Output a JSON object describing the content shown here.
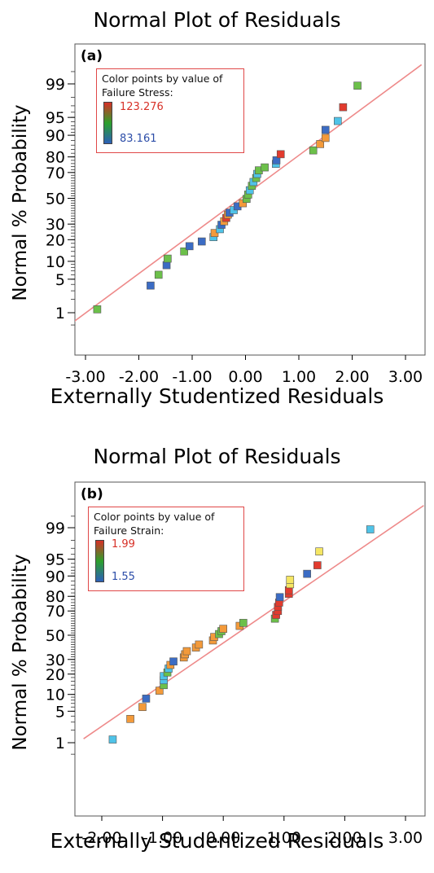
{
  "chart_data": [
    {
      "type": "scatter",
      "panel_label": "(a)",
      "title": "Normal Plot of Residuals",
      "xlabel": "Externally Studentized Residuals",
      "ylabel": "Normal % Probability",
      "x_ticks": [
        "-3.00",
        "-2.00",
        "-1.00",
        "0.00",
        "1.00",
        "2.00",
        "3.00"
      ],
      "y_ticks": [
        "1",
        "5",
        "10",
        "20",
        "30",
        "50",
        "70",
        "80",
        "90",
        "95",
        "99"
      ],
      "y_scale": "normal probability",
      "xlim": [
        -3.6,
        3.3
      ],
      "fit_line": {
        "x": [
          -3.6,
          3.3
        ],
        "y": [
          0.245,
          99.67
        ]
      },
      "legend": {
        "title_line1": "Color points by value of",
        "title_line2": "Failure Stress:",
        "max": "123.276",
        "min": "83.161",
        "placement": "top-left"
      },
      "points": [
        {
          "x": -2.78,
          "y": 1.2,
          "color": "#6cc04a"
        },
        {
          "x": -1.78,
          "y": 3.8,
          "color": "#3b6cc4"
        },
        {
          "x": -1.63,
          "y": 6.0,
          "color": "#6cc04a"
        },
        {
          "x": -1.48,
          "y": 8.7,
          "color": "#3b6cc4"
        },
        {
          "x": -1.46,
          "y": 11.0,
          "color": "#6cc04a"
        },
        {
          "x": -1.15,
          "y": 14.0,
          "color": "#6cc04a"
        },
        {
          "x": -1.05,
          "y": 16.5,
          "color": "#3b6cc4"
        },
        {
          "x": -0.82,
          "y": 19.0,
          "color": "#3b6cc4"
        },
        {
          "x": -0.6,
          "y": 21.5,
          "color": "#4fc3e8"
        },
        {
          "x": -0.58,
          "y": 24.0,
          "color": "#f39a3a"
        },
        {
          "x": -0.48,
          "y": 26.5,
          "color": "#4fc3e8"
        },
        {
          "x": -0.45,
          "y": 29.5,
          "color": "#3b6cc4"
        },
        {
          "x": -0.4,
          "y": 32.0,
          "color": "#f39a3a"
        },
        {
          "x": -0.36,
          "y": 34.5,
          "color": "#e23b2e"
        },
        {
          "x": -0.33,
          "y": 37.0,
          "color": "#f39a3a"
        },
        {
          "x": -0.3,
          "y": 38.5,
          "color": "#3b6cc4"
        },
        {
          "x": -0.22,
          "y": 40.5,
          "color": "#4fc3e8"
        },
        {
          "x": -0.15,
          "y": 43.5,
          "color": "#3b6cc4"
        },
        {
          "x": -0.05,
          "y": 46.0,
          "color": "#f39a3a"
        },
        {
          "x": 0.02,
          "y": 49.5,
          "color": "#6cc04a"
        },
        {
          "x": 0.05,
          "y": 53.0,
          "color": "#6cc04a"
        },
        {
          "x": 0.08,
          "y": 56.5,
          "color": "#4fc3e8"
        },
        {
          "x": 0.12,
          "y": 60.0,
          "color": "#6cc04a"
        },
        {
          "x": 0.15,
          "y": 63.0,
          "color": "#4fc3e8"
        },
        {
          "x": 0.2,
          "y": 66.0,
          "color": "#6cc04a"
        },
        {
          "x": 0.22,
          "y": 69.0,
          "color": "#4fc3e8"
        },
        {
          "x": 0.25,
          "y": 71.5,
          "color": "#6cc04a"
        },
        {
          "x": 0.36,
          "y": 73.5,
          "color": "#6cc04a"
        },
        {
          "x": 0.57,
          "y": 75.8,
          "color": "#4fc3e8"
        },
        {
          "x": 0.58,
          "y": 78.0,
          "color": "#3b6cc4"
        },
        {
          "x": 0.66,
          "y": 81.5,
          "color": "#e23b2e"
        },
        {
          "x": 1.27,
          "y": 83.5,
          "color": "#6cc04a"
        },
        {
          "x": 1.4,
          "y": 86.5,
          "color": "#f39a3a"
        },
        {
          "x": 1.5,
          "y": 89.0,
          "color": "#f39a3a"
        },
        {
          "x": 1.5,
          "y": 91.8,
          "color": "#3b6cc4"
        },
        {
          "x": 1.73,
          "y": 94.2,
          "color": "#4fc3e8"
        },
        {
          "x": 1.83,
          "y": 96.8,
          "color": "#e23b2e"
        },
        {
          "x": 2.1,
          "y": 98.9,
          "color": "#6cc04a"
        }
      ]
    },
    {
      "type": "scatter",
      "panel_label": "(b)",
      "title": "Normal Plot of Residuals",
      "xlabel": "Externally Studentized Residuals",
      "ylabel": "Normal % Probability",
      "x_ticks": [
        "-2.00",
        "-1.00",
        "0.00",
        "1.00",
        "2.00",
        "3.00"
      ],
      "y_ticks": [
        "1",
        "5",
        "10",
        "20",
        "30",
        "50",
        "70",
        "80",
        "90",
        "95",
        "99"
      ],
      "y_scale": "normal probability",
      "xlim": [
        -2.3,
        3.3
      ],
      "fit_line": {
        "x": [
          -2.3,
          3.3
        ],
        "y": [
          1.25,
          99.75
        ]
      },
      "legend": {
        "title_line1": "Color points by value of",
        "title_line2": "Failure Strain:",
        "max": "1.99",
        "min": "1.55",
        "placement": "top-left"
      },
      "points": [
        {
          "x": -1.82,
          "y": 1.2,
          "color": "#4fc3e8"
        },
        {
          "x": -1.53,
          "y": 3.5,
          "color": "#f39a3a"
        },
        {
          "x": -1.33,
          "y": 6.0,
          "color": "#f39a3a"
        },
        {
          "x": -1.27,
          "y": 8.5,
          "color": "#3b6cc4"
        },
        {
          "x": -1.05,
          "y": 11.5,
          "color": "#f39a3a"
        },
        {
          "x": -0.98,
          "y": 14.0,
          "color": "#6cc04a"
        },
        {
          "x": -0.98,
          "y": 16.5,
          "color": "#4fc3e8"
        },
        {
          "x": -0.98,
          "y": 18.8,
          "color": "#4fc3e8"
        },
        {
          "x": -0.92,
          "y": 21.0,
          "color": "#6cc04a"
        },
        {
          "x": -0.9,
          "y": 23.5,
          "color": "#4fc3e8"
        },
        {
          "x": -0.87,
          "y": 26.0,
          "color": "#f39a3a"
        },
        {
          "x": -0.82,
          "y": 28.5,
          "color": "#3b6cc4"
        },
        {
          "x": -0.65,
          "y": 31.5,
          "color": "#f39a3a"
        },
        {
          "x": -0.63,
          "y": 34.0,
          "color": "#f39a3a"
        },
        {
          "x": -0.6,
          "y": 36.5,
          "color": "#f39a3a"
        },
        {
          "x": -0.45,
          "y": 39.5,
          "color": "#f39a3a"
        },
        {
          "x": -0.4,
          "y": 42.0,
          "color": "#f39a3a"
        },
        {
          "x": -0.17,
          "y": 45.5,
          "color": "#f39a3a"
        },
        {
          "x": -0.15,
          "y": 48.5,
          "color": "#f39a3a"
        },
        {
          "x": -0.07,
          "y": 51.0,
          "color": "#6cc04a"
        },
        {
          "x": -0.03,
          "y": 53.5,
          "color": "#6cc04a"
        },
        {
          "x": 0.0,
          "y": 55.5,
          "color": "#f39a3a"
        },
        {
          "x": 0.27,
          "y": 58.0,
          "color": "#f39a3a"
        },
        {
          "x": 0.33,
          "y": 60.5,
          "color": "#6cc04a"
        },
        {
          "x": 0.85,
          "y": 64.0,
          "color": "#6cc04a"
        },
        {
          "x": 0.87,
          "y": 67.0,
          "color": "#e23b2e"
        },
        {
          "x": 0.9,
          "y": 70.0,
          "color": "#e23b2e"
        },
        {
          "x": 0.9,
          "y": 73.0,
          "color": "#e23b2e"
        },
        {
          "x": 0.92,
          "y": 76.0,
          "color": "#e23b2e"
        },
        {
          "x": 0.93,
          "y": 79.5,
          "color": "#3b6cc4"
        },
        {
          "x": 1.08,
          "y": 81.5,
          "color": "#e23b2e"
        },
        {
          "x": 1.08,
          "y": 83.5,
          "color": "#e23b2e"
        },
        {
          "x": 1.1,
          "y": 86.5,
          "color": "#f5e663"
        },
        {
          "x": 1.1,
          "y": 88.5,
          "color": "#f5e663"
        },
        {
          "x": 1.38,
          "y": 90.8,
          "color": "#3b6cc4"
        },
        {
          "x": 1.55,
          "y": 93.5,
          "color": "#e23b2e"
        },
        {
          "x": 1.58,
          "y": 96.5,
          "color": "#f5e663"
        },
        {
          "x": 2.42,
          "y": 98.9,
          "color": "#4fc3e8"
        }
      ]
    }
  ]
}
